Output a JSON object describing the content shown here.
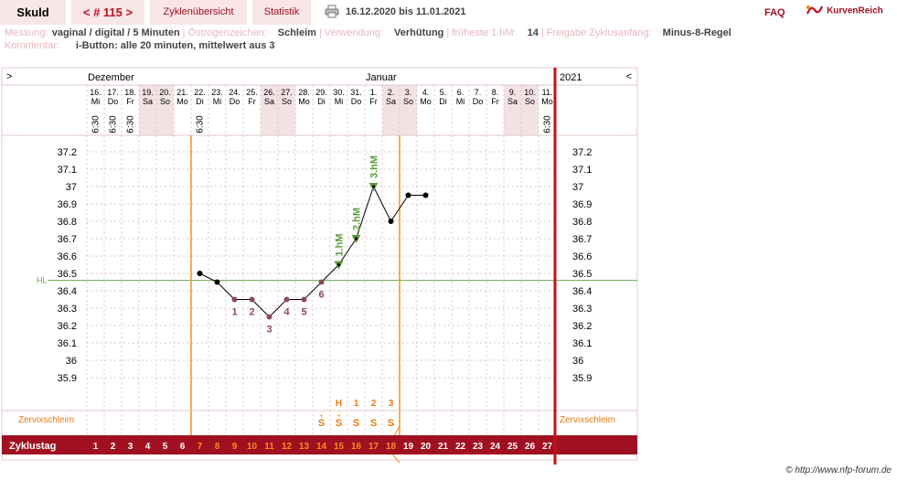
{
  "header": {
    "name": "Skuld",
    "cycle_nav": "< # 115 >",
    "tab_overview": "Zyklenübersicht",
    "tab_stats": "Statistik",
    "date_range": "16.12.2020 bis 11.01.2021",
    "faq": "FAQ",
    "brand": "KurvenReich"
  },
  "info": {
    "messung_label": "Messung:",
    "messung_value": "vaginal / digital / 5 Minuten",
    "oestrogen_label": "Östrogenzeichen:",
    "oestrogen_value": "Schleim",
    "verwendung_label": "Verwendung:",
    "verwendung_value": "Verhütung",
    "fhm_label": "früheste 1.hM:",
    "fhm_value": "14",
    "freigabe_label": "Freigabe Zyklusanfang:",
    "freigabe_value": "Minus-8-Regel",
    "kommentar_label": "Kommentar:",
    "kommentar_value": "i-Button: alle 20 minuten, mittelwert aus 3"
  },
  "chart_data": {
    "type": "line",
    "nav_left": ">",
    "nav_right": "<",
    "month_labels": [
      "Dezember",
      "Januar"
    ],
    "year_label": "2021",
    "dates": [
      {
        "d": "16.",
        "w": "Mi",
        "t": "6:30"
      },
      {
        "d": "17.",
        "w": "Do",
        "t": "6:30"
      },
      {
        "d": "18.",
        "w": "Fr",
        "t": "6:30"
      },
      {
        "d": "19.",
        "w": "Sa",
        "t": ""
      },
      {
        "d": "20.",
        "w": "So",
        "t": ""
      },
      {
        "d": "21.",
        "w": "Mo",
        "t": ""
      },
      {
        "d": "22.",
        "w": "Di",
        "t": "6:30"
      },
      {
        "d": "23.",
        "w": "Mi",
        "t": ""
      },
      {
        "d": "24.",
        "w": "Do",
        "t": ""
      },
      {
        "d": "25.",
        "w": "Fr",
        "t": ""
      },
      {
        "d": "26.",
        "w": "Sa",
        "t": ""
      },
      {
        "d": "27.",
        "w": "So",
        "t": ""
      },
      {
        "d": "28.",
        "w": "Mo",
        "t": ""
      },
      {
        "d": "29.",
        "w": "Di",
        "t": ""
      },
      {
        "d": "30.",
        "w": "Mi",
        "t": ""
      },
      {
        "d": "31.",
        "w": "Do",
        "t": ""
      },
      {
        "d": "1.",
        "w": "Fr",
        "t": ""
      },
      {
        "d": "2.",
        "w": "Sa",
        "t": ""
      },
      {
        "d": "3.",
        "w": "So",
        "t": ""
      },
      {
        "d": "4.",
        "w": "Mo",
        "t": ""
      },
      {
        "d": "5.",
        "w": "Di",
        "t": ""
      },
      {
        "d": "6.",
        "w": "Mi",
        "t": ""
      },
      {
        "d": "7.",
        "w": "Do",
        "t": ""
      },
      {
        "d": "8.",
        "w": "Fr",
        "t": ""
      },
      {
        "d": "9.",
        "w": "Sa",
        "t": ""
      },
      {
        "d": "10.",
        "w": "So",
        "t": ""
      },
      {
        "d": "11.",
        "w": "Mo",
        "t": "6:30"
      }
    ],
    "weekend_days": [
      4,
      5,
      11,
      12,
      18,
      19,
      25,
      26
    ],
    "y_ticks": [
      "37.2",
      "37.1",
      "37",
      "36.9",
      "36.8",
      "36.7",
      "36.6",
      "36.5",
      "36.4",
      "36.3",
      "36.2",
      "36.1",
      "36",
      "35.9"
    ],
    "ylim": [
      35.8,
      37.3
    ],
    "hl_label": "HL",
    "hl_value": 36.46,
    "temperatures": [
      {
        "day": 7,
        "temp": 36.5
      },
      {
        "day": 8,
        "temp": 36.45
      },
      {
        "day": 9,
        "temp": 36.35
      },
      {
        "day": 10,
        "temp": 36.35
      },
      {
        "day": 11,
        "temp": 36.25
      },
      {
        "day": 12,
        "temp": 36.35
      },
      {
        "day": 13,
        "temp": 36.35
      },
      {
        "day": 14,
        "temp": 36.45
      },
      {
        "day": 15,
        "temp": 36.55
      },
      {
        "day": 16,
        "temp": 36.7
      },
      {
        "day": 17,
        "temp": 37.0
      },
      {
        "day": 18,
        "temp": 36.8
      },
      {
        "day": 19,
        "temp": 36.95
      },
      {
        "day": 20,
        "temp": 36.95
      }
    ],
    "lowlevel_labels": [
      {
        "day": 9,
        "label": "1"
      },
      {
        "day": 10,
        "label": "2"
      },
      {
        "day": 11,
        "label": "3"
      },
      {
        "day": 12,
        "label": "4"
      },
      {
        "day": 13,
        "label": "5"
      },
      {
        "day": 14,
        "label": "6"
      }
    ],
    "high_markers": [
      {
        "day": 15,
        "label": "1.hM"
      },
      {
        "day": 16,
        "label": "2.hM"
      },
      {
        "day": 17,
        "label": "3.hM"
      }
    ],
    "cervix_label": "Zervixschleim",
    "cervix_counts": [
      {
        "day": 15,
        "label": "H"
      },
      {
        "day": 16,
        "label": "1"
      },
      {
        "day": 17,
        "label": "2"
      },
      {
        "day": 18,
        "label": "3"
      }
    ],
    "cervix_codes": [
      {
        "day": 14,
        "label": "S"
      },
      {
        "day": 15,
        "label": "S"
      },
      {
        "day": 16,
        "label": "S"
      },
      {
        "day": 17,
        "label": "S"
      },
      {
        "day": 18,
        "label": "S"
      }
    ],
    "cervix_plus_days": [
      14,
      15
    ],
    "cycle_label": "Zyklustag",
    "cycle_days": [
      "1",
      "2",
      "3",
      "4",
      "5",
      "6",
      "7",
      "8",
      "9",
      "10",
      "11",
      "12",
      "13",
      "14",
      "15",
      "16",
      "17",
      "18",
      "19",
      "20",
      "21",
      "22",
      "23",
      "24",
      "25",
      "26",
      "27"
    ],
    "orange_day_numbers": [
      7,
      8,
      9,
      10,
      11,
      12,
      13,
      14,
      15,
      16,
      17,
      18
    ],
    "colors": {
      "accent": "#a01020",
      "orange": "#f5901e",
      "low_point": "#8c4a58",
      "high_marker": "#5c9c3c",
      "coverline": "#6aa84f",
      "weekend": "#f3e2e4",
      "grid": "#d7b0b4",
      "cervix_text": "#e87a10"
    }
  },
  "footer": {
    "credit": "© http://www.nfp-forum.de"
  }
}
